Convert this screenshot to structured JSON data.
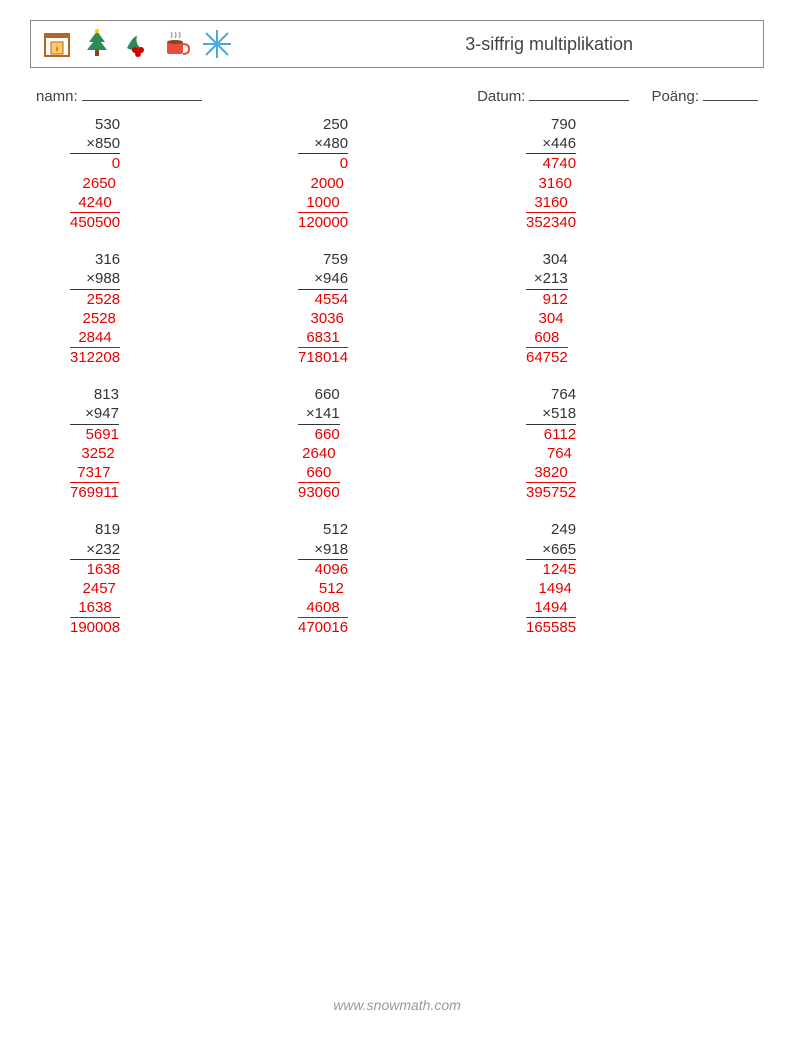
{
  "title": "3-siffrig multiplikation",
  "labels": {
    "name": "namn:",
    "date": "Datum:",
    "score": "Poäng:"
  },
  "blanks": {
    "name_w": 120,
    "date_w": 100,
    "score_w": 55
  },
  "colors": {
    "text": "#333333",
    "answer": "#e60000",
    "border": "#888888",
    "footer": "#999999"
  },
  "font": {
    "family": "Arial",
    "size_body": 15,
    "size_title": 18
  },
  "icons": [
    "fireplace",
    "tree",
    "holly",
    "cocoa",
    "snowflake"
  ],
  "footer": "www.snowmath.com",
  "problems": [
    {
      "a": "530",
      "b": "850",
      "partials": [
        "0",
        "2650",
        "4240"
      ],
      "result": "450500",
      "width": 6
    },
    {
      "a": "250",
      "b": "480",
      "partials": [
        "0",
        "2000",
        "1000"
      ],
      "result": "120000",
      "width": 6
    },
    {
      "a": "790",
      "b": "446",
      "partials": [
        "4740",
        "3160",
        "3160"
      ],
      "result": "352340",
      "width": 6
    },
    {
      "a": "316",
      "b": "988",
      "partials": [
        "2528",
        "2528",
        "2844"
      ],
      "result": "312208",
      "width": 6
    },
    {
      "a": "759",
      "b": "946",
      "partials": [
        "4554",
        "3036",
        "6831"
      ],
      "result": "718014",
      "width": 6
    },
    {
      "a": "304",
      "b": "213",
      "partials": [
        "912",
        "304",
        "608"
      ],
      "result": "64752",
      "width": 5
    },
    {
      "a": "813",
      "b": "947",
      "partials": [
        "5691",
        "3252",
        "7317"
      ],
      "result": "769911",
      "width": 6
    },
    {
      "a": "660",
      "b": "141",
      "partials": [
        "660",
        "2640",
        "660"
      ],
      "result": "93060",
      "width": 5
    },
    {
      "a": "764",
      "b": "518",
      "partials": [
        "6112",
        "764",
        "3820"
      ],
      "result": "395752",
      "width": 6
    },
    {
      "a": "819",
      "b": "232",
      "partials": [
        "1638",
        "2457",
        "1638"
      ],
      "result": "190008",
      "width": 6
    },
    {
      "a": "512",
      "b": "918",
      "partials": [
        "4096",
        "512",
        "4608"
      ],
      "result": "470016",
      "width": 6
    },
    {
      "a": "249",
      "b": "665",
      "partials": [
        "1245",
        "1494",
        "1494"
      ],
      "result": "165585",
      "width": 6
    }
  ]
}
